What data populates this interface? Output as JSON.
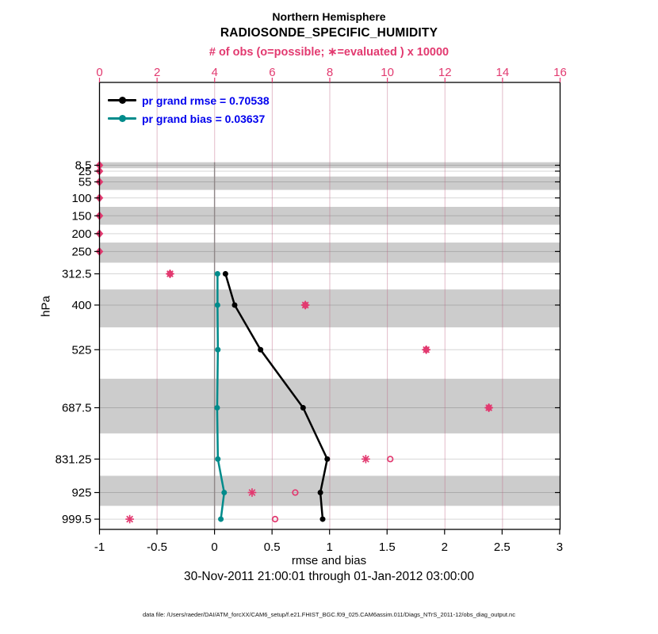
{
  "header": {
    "title": "Northern Hemisphere",
    "subtitle": "RADIOSONDE_SPECIFIC_HUMIDITY"
  },
  "top_axis": {
    "label": "# of obs (o=possible; ∗=evaluated ) x 10000",
    "tick_labels": [
      "0",
      "2",
      "4",
      "6",
      "8",
      "10",
      "12",
      "14",
      "16"
    ],
    "tick_values": [
      0,
      2,
      4,
      6,
      8,
      10,
      12,
      14,
      16
    ]
  },
  "x_axis": {
    "label": "rmse and bias",
    "tick_labels": [
      "-1",
      "-0.5",
      "0",
      "0.5",
      "1",
      "1.5",
      "2",
      "2.5",
      "3"
    ],
    "tick_values": [
      -1,
      -0.5,
      0,
      0.5,
      1,
      1.5,
      2,
      2.5,
      3
    ]
  },
  "y_axis": {
    "label": "hPa",
    "tick_labels": [
      "8.5",
      "25",
      "55",
      "100",
      "150",
      "200",
      "250",
      "312.5",
      "400",
      "525",
      "687.5",
      "831.25",
      "925",
      "999.5"
    ],
    "tick_values": [
      8.5,
      25,
      55,
      100,
      150,
      200,
      250,
      312.5,
      400,
      525,
      687.5,
      831.25,
      925,
      999.5
    ]
  },
  "legend": {
    "items": [
      {
        "label": "pr grand rmse = 0.70538",
        "color": "#000000"
      },
      {
        "label": "pr grand bias = 0.03637",
        "color": "#008b8b"
      }
    ]
  },
  "footer": {
    "date_range": "30-Nov-2011 21:00:01 through 01-Jan-2012 03:00:00",
    "data_file": "data file: /Users/raeder/DAI/ATM_forcXX/CAM6_setup/f.e21.FHIST_BGC.f09_025.CAM6assim.011/Diags_NTrS_2011-12/obs_diag_output.nc"
  },
  "colors": {
    "obs": "#e23a70",
    "rmse": "#000000",
    "bias": "#008b8b",
    "legend_text": "#0000ee",
    "band": "#cccccc",
    "zero_line": "#8f8888"
  },
  "chart_data": {
    "type": "line",
    "title": "Northern Hemisphere RADIOSONDE_SPECIFIC_HUMIDITY",
    "orientation": "vertical-profile",
    "ylabel": "hPa",
    "xlabel_bottom": "rmse and bias",
    "xlabel_top": "# of obs (o=possible; ∗=evaluated ) x 10000",
    "x_range_bottom": [
      -1,
      3
    ],
    "x_range_top": [
      0,
      16
    ],
    "levels_hpa": [
      8.5,
      25,
      55,
      100,
      150,
      200,
      250,
      312.5,
      400,
      525,
      687.5,
      831.25,
      925,
      999.5
    ],
    "series": [
      {
        "name": "pr grand rmse",
        "stat": 0.70538,
        "color": "#000000",
        "values": [
          null,
          null,
          null,
          null,
          null,
          null,
          null,
          0.095,
          0.175,
          0.4,
          0.77,
          0.98,
          0.92,
          0.94
        ]
      },
      {
        "name": "pr grand bias",
        "stat": 0.03637,
        "color": "#008b8b",
        "values": [
          null,
          null,
          null,
          null,
          null,
          null,
          null,
          0.026,
          0.026,
          0.029,
          0.023,
          0.029,
          0.084,
          0.055
        ]
      }
    ],
    "obs_counts_x10000": {
      "possible": [
        0,
        0,
        0,
        0,
        0,
        0,
        0,
        2.45,
        7.15,
        11.35,
        13.6,
        10.1,
        6.8,
        6.1
      ],
      "evaluated": [
        0,
        0,
        0,
        0,
        0,
        0,
        0,
        2.45,
        7.15,
        11.35,
        13.45,
        9.25,
        5.3,
        1.05
      ]
    },
    "shaded_bands_hpa": [
      [
        0,
        16.75
      ],
      [
        40,
        77.5
      ],
      [
        125,
        175
      ],
      [
        225,
        281.25
      ],
      [
        356.25,
        462.5
      ],
      [
        606.25,
        759.375
      ],
      [
        878.125,
        962.25
      ]
    ],
    "grid": true,
    "legend_position": "top-left-inside"
  }
}
